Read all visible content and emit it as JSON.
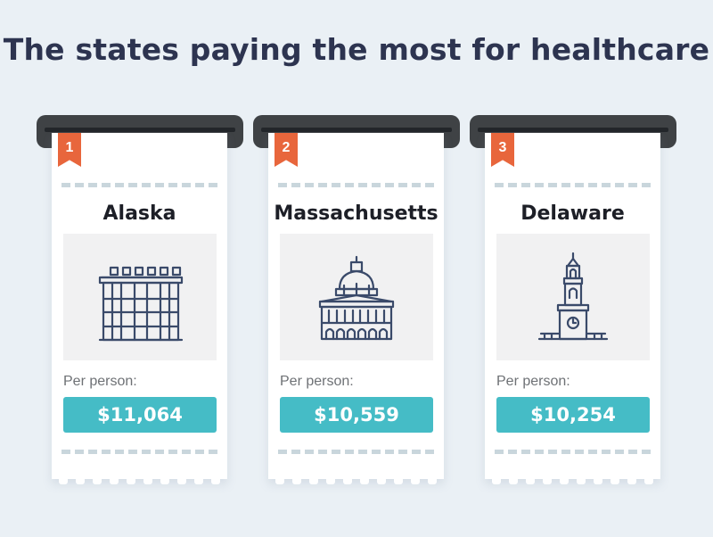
{
  "title": "The states paying the most for healthcare",
  "cards": [
    {
      "rank": "1",
      "state": "Alaska",
      "per_label": "Per person:",
      "amount": "$11,064",
      "icon": "alaska-capitol-building-icon"
    },
    {
      "rank": "2",
      "state": "Massachusetts",
      "per_label": "Per person:",
      "amount": "$10,559",
      "icon": "massachusetts-state-house-dome-icon"
    },
    {
      "rank": "3",
      "state": "Delaware",
      "per_label": "Per person:",
      "amount": "$10,254",
      "icon": "clock-tower-icon"
    }
  ],
  "colors": {
    "background": "#eaf0f5",
    "title": "#2d3450",
    "rank_ribbon": "#e8663c",
    "price_badge": "#45bcc6",
    "printer": "#3f4245",
    "icon_stroke": "#3a4a6a"
  }
}
